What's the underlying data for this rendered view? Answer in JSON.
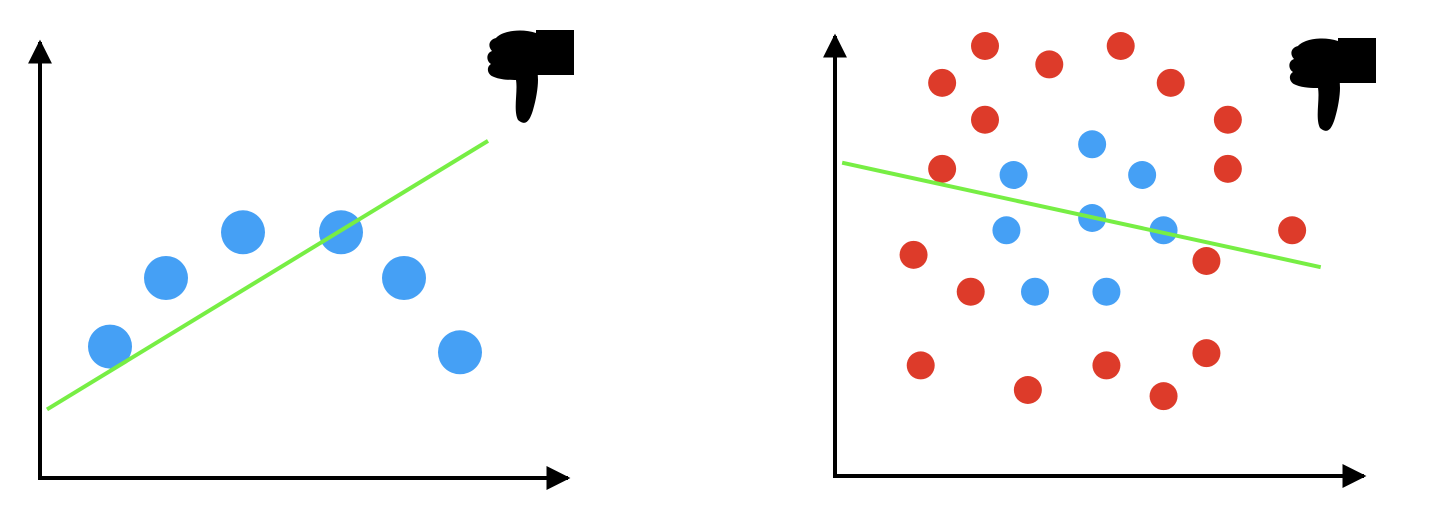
{
  "colors": {
    "axis": "#000000",
    "fit_line": "#77ee44",
    "blue_point": "#45a0f5",
    "red_point": "#dd3b2a",
    "icon": "#000000"
  },
  "icons": [
    "thumbs-down-icon",
    "thumbs-down-icon"
  ],
  "chart_data": [
    {
      "type": "scatter",
      "title": "",
      "xlabel": "",
      "ylabel": "",
      "grid": false,
      "axis_ticks": false,
      "icon": "thumbs-down-icon",
      "series": [
        {
          "color": "#45a0f5",
          "points": [
            [
              1.0,
              2.3
            ],
            [
              1.8,
              3.5
            ],
            [
              2.9,
              4.3
            ],
            [
              4.3,
              4.3
            ],
            [
              5.2,
              3.5
            ],
            [
              6.0,
              2.2
            ]
          ]
        }
      ],
      "fit_line": {
        "color": "#77ee44",
        "points": [
          [
            0.1,
            1.2
          ],
          [
            6.4,
            5.9
          ]
        ]
      },
      "xlim": [
        0,
        7
      ],
      "ylim": [
        0,
        7
      ]
    },
    {
      "type": "scatter",
      "title": "",
      "xlabel": "",
      "ylabel": "",
      "grid": false,
      "axis_ticks": false,
      "icon": "thumbs-down-icon",
      "series": [
        {
          "color": "#dd3b2a",
          "points": [
            [
              2.1,
              7.0
            ],
            [
              3.0,
              6.7
            ],
            [
              4.0,
              7.0
            ],
            [
              1.5,
              6.4
            ],
            [
              2.1,
              5.8
            ],
            [
              4.7,
              6.4
            ],
            [
              5.5,
              5.8
            ],
            [
              1.5,
              5.0
            ],
            [
              5.5,
              5.0
            ],
            [
              6.4,
              4.0
            ],
            [
              1.1,
              3.6
            ],
            [
              5.2,
              3.5
            ],
            [
              1.9,
              3.0
            ],
            [
              5.2,
              2.0
            ],
            [
              1.2,
              1.8
            ],
            [
              3.8,
              1.8
            ],
            [
              2.7,
              1.4
            ],
            [
              4.6,
              1.3
            ]
          ]
        },
        {
          "color": "#45a0f5",
          "points": [
            [
              3.6,
              5.4
            ],
            [
              2.5,
              4.9
            ],
            [
              4.3,
              4.9
            ],
            [
              2.4,
              4.0
            ],
            [
              3.6,
              4.2
            ],
            [
              4.6,
              4.0
            ],
            [
              2.8,
              3.0
            ],
            [
              3.8,
              3.0
            ]
          ]
        }
      ],
      "fit_line": {
        "color": "#77ee44",
        "points": [
          [
            0.1,
            5.1
          ],
          [
            6.8,
            3.4
          ]
        ]
      },
      "xlim": [
        0,
        7
      ],
      "ylim": [
        0,
        7
      ]
    }
  ]
}
